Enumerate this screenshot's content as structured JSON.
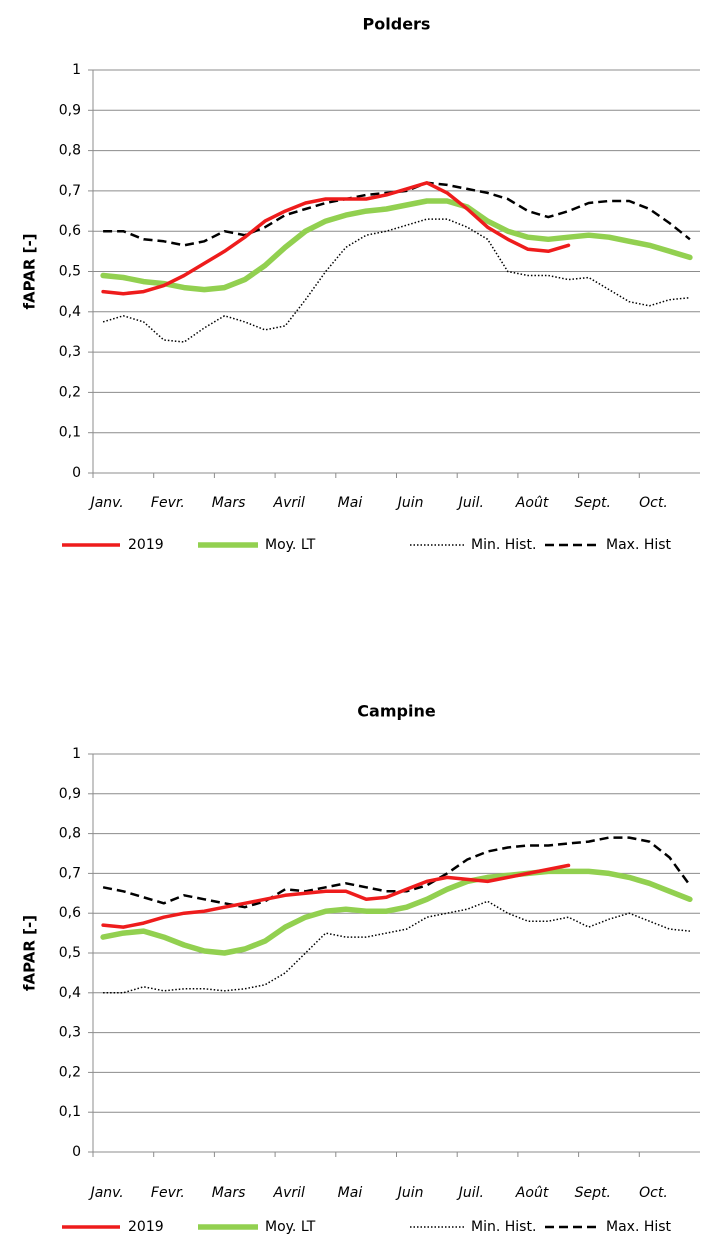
{
  "chart_data": [
    {
      "type": "line",
      "title": "Polders",
      "ylabel": "fAPAR [-]",
      "categories": [
        "Janv.",
        null,
        null,
        "Fevr.",
        null,
        null,
        "Mars",
        null,
        null,
        "Avril",
        null,
        null,
        "Mai",
        null,
        null,
        "Juin",
        null,
        null,
        "Juil.",
        null,
        null,
        "Août",
        null,
        null,
        "Sept.",
        null,
        null,
        "Oct.",
        null,
        null
      ],
      "ylim": [
        0,
        1
      ],
      "yticks": [
        0,
        {
          "value": 0.1,
          "label": "0,1"
        },
        {
          "value": 0.2,
          "label": "0,2"
        },
        {
          "value": 0.3,
          "label": "0,3"
        },
        {
          "value": 0.4,
          "label": "0,4"
        },
        {
          "value": 0.5,
          "label": "0,5"
        },
        {
          "value": 0.6,
          "label": "0,6"
        },
        {
          "value": 0.7,
          "label": "0,7"
        },
        {
          "value": 0.8,
          "label": "0,8"
        },
        {
          "value": 0.9,
          "label": "0,9"
        },
        1
      ],
      "grid": true,
      "legend": "bottom",
      "series": [
        {
          "name": "2019",
          "color": "#ee1c1c",
          "line_style": "solid",
          "values": [
            0.45,
            0.445,
            0.45,
            0.465,
            0.49,
            0.52,
            0.55,
            0.585,
            0.625,
            0.65,
            0.67,
            0.68,
            0.68,
            0.68,
            0.69,
            0.705,
            0.72,
            0.695,
            0.655,
            0.61,
            0.58,
            0.555,
            0.55,
            0.565,
            null,
            null,
            null,
            null,
            null,
            null
          ]
        },
        {
          "name": "Moy. LT",
          "color": "#92d050",
          "line_style": "thick",
          "values": [
            0.49,
            0.485,
            0.475,
            0.47,
            0.46,
            0.455,
            0.46,
            0.48,
            0.515,
            0.56,
            0.6,
            0.625,
            0.64,
            0.65,
            0.655,
            0.665,
            0.675,
            0.675,
            0.66,
            0.625,
            0.6,
            0.585,
            0.58,
            0.585,
            0.59,
            0.585,
            0.575,
            0.565,
            0.55,
            0.535
          ]
        },
        {
          "name": "Min. Hist.",
          "color": "#000000",
          "line_style": "dotted",
          "values": [
            0.375,
            0.39,
            0.375,
            0.33,
            0.325,
            0.36,
            0.39,
            0.375,
            0.355,
            0.365,
            0.43,
            0.5,
            0.56,
            0.59,
            0.6,
            0.615,
            0.63,
            0.63,
            0.61,
            0.58,
            0.5,
            0.49,
            0.49,
            0.48,
            0.485,
            0.455,
            0.425,
            0.415,
            0.43,
            0.435
          ]
        },
        {
          "name": "Max. Hist",
          "color": "#000000",
          "line_style": "dashed",
          "values": [
            0.6,
            0.6,
            0.58,
            0.575,
            0.565,
            0.575,
            0.6,
            0.59,
            0.61,
            0.64,
            0.655,
            0.67,
            0.68,
            0.69,
            0.695,
            0.7,
            0.72,
            0.715,
            0.705,
            0.695,
            0.68,
            0.65,
            0.635,
            0.65,
            0.67,
            0.675,
            0.675,
            0.655,
            0.62,
            0.58
          ]
        }
      ]
    },
    {
      "type": "line",
      "title": "Campine",
      "ylabel": "fAPAR [-]",
      "categories": [
        "Janv.",
        null,
        null,
        "Fevr.",
        null,
        null,
        "Mars",
        null,
        null,
        "Avril",
        null,
        null,
        "Mai",
        null,
        null,
        "Juin",
        null,
        null,
        "Juil.",
        null,
        null,
        "Août",
        null,
        null,
        "Sept.",
        null,
        null,
        "Oct.",
        null,
        null
      ],
      "ylim": [
        0,
        1
      ],
      "yticks": [
        0,
        {
          "value": 0.1,
          "label": "0,1"
        },
        {
          "value": 0.2,
          "label": "0,2"
        },
        {
          "value": 0.3,
          "label": "0,3"
        },
        {
          "value": 0.4,
          "label": "0,4"
        },
        {
          "value": 0.5,
          "label": "0,5"
        },
        {
          "value": 0.6,
          "label": "0,6"
        },
        {
          "value": 0.7,
          "label": "0,7"
        },
        {
          "value": 0.8,
          "label": "0,8"
        },
        {
          "value": 0.9,
          "label": "0,9"
        },
        1
      ],
      "grid": true,
      "legend": "bottom",
      "series": [
        {
          "name": "2019",
          "color": "#ee1c1c",
          "line_style": "solid",
          "values": [
            0.57,
            0.565,
            0.575,
            0.59,
            0.6,
            0.605,
            0.615,
            0.625,
            0.635,
            0.645,
            0.65,
            0.655,
            0.655,
            0.635,
            0.64,
            0.66,
            0.68,
            0.69,
            0.685,
            0.68,
            0.69,
            0.7,
            0.71,
            0.72,
            null,
            null,
            null,
            null,
            null,
            null
          ]
        },
        {
          "name": "Moy. LT",
          "color": "#92d050",
          "line_style": "thick",
          "values": [
            0.54,
            0.55,
            0.555,
            0.54,
            0.52,
            0.505,
            0.5,
            0.51,
            0.53,
            0.565,
            0.59,
            0.605,
            0.61,
            0.605,
            0.605,
            0.615,
            0.635,
            0.66,
            0.68,
            0.69,
            0.695,
            0.7,
            0.705,
            0.705,
            0.705,
            0.7,
            0.69,
            0.675,
            0.655,
            0.635
          ]
        },
        {
          "name": "Min. Hist.",
          "color": "#000000",
          "line_style": "dotted",
          "values": [
            0.4,
            0.4,
            0.415,
            0.405,
            0.41,
            0.41,
            0.405,
            0.41,
            0.42,
            0.45,
            0.5,
            0.55,
            0.54,
            0.54,
            0.55,
            0.56,
            0.59,
            0.6,
            0.61,
            0.63,
            0.6,
            0.58,
            0.58,
            0.59,
            0.565,
            0.585,
            0.6,
            0.58,
            0.56,
            0.555
          ]
        },
        {
          "name": "Max. Hist",
          "color": "#000000",
          "line_style": "dashed",
          "values": [
            0.665,
            0.655,
            0.64,
            0.625,
            0.645,
            0.635,
            0.625,
            0.615,
            0.63,
            0.66,
            0.655,
            0.665,
            0.675,
            0.665,
            0.655,
            0.655,
            0.67,
            0.7,
            0.735,
            0.755,
            0.765,
            0.77,
            0.77,
            0.775,
            0.78,
            0.79,
            0.79,
            0.78,
            0.74,
            0.67
          ]
        }
      ]
    }
  ]
}
